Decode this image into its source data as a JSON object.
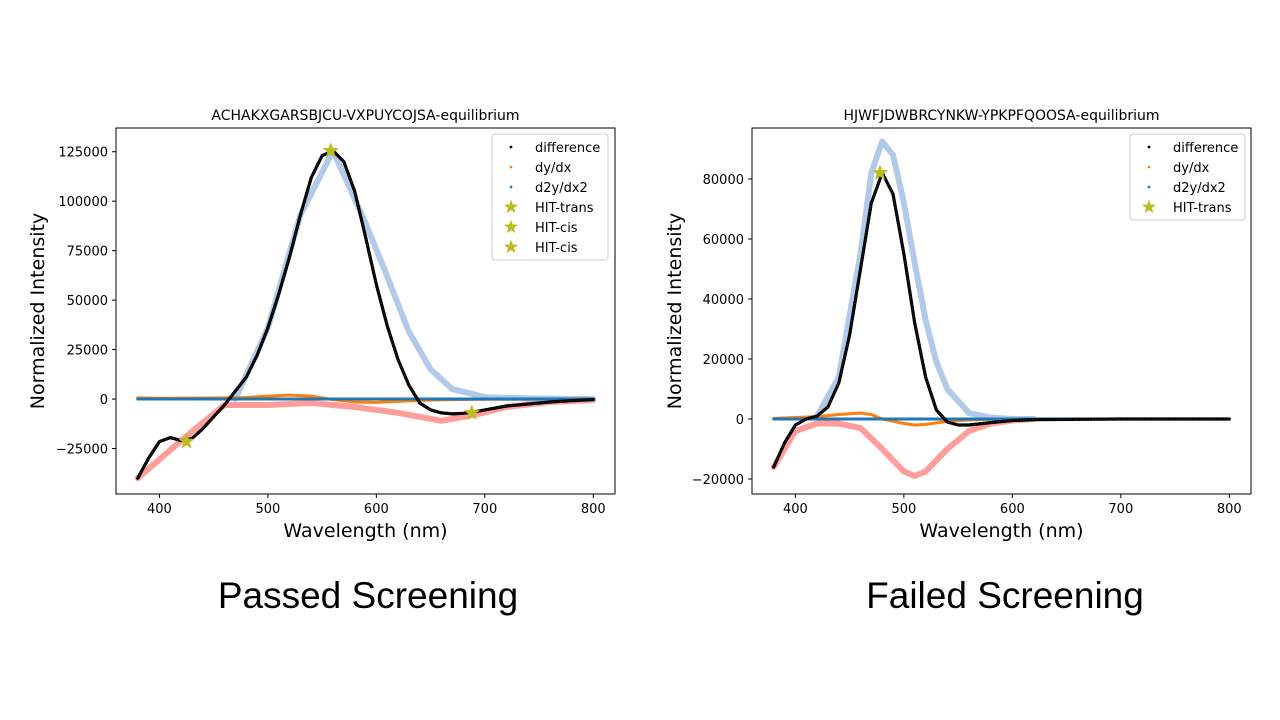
{
  "captions": {
    "left": "Passed Screening",
    "right": "Failed Screening"
  },
  "chart_data": [
    {
      "type": "scatter",
      "title": "ACHAKXGARSBJCU-VXPUYCOJSA-equilibrium",
      "xlabel": "Wavelength (nm)",
      "ylabel": "Normalized Intensity",
      "xlim": [
        360,
        820
      ],
      "ylim": [
        -48000,
        137000
      ],
      "xticks": [
        400,
        500,
        600,
        700,
        800
      ],
      "yticks": [
        -25000,
        0,
        25000,
        50000,
        75000,
        100000,
        125000
      ],
      "grid": false,
      "legend_position": "top-right",
      "legend": [
        {
          "label": "difference",
          "marker": "dot",
          "color": "#000000"
        },
        {
          "label": "dy/dx",
          "marker": "dot",
          "color": "#ff7f0e"
        },
        {
          "label": "d2y/dx2",
          "marker": "dot",
          "color": "#1f77b4"
        },
        {
          "label": "HIT-trans",
          "marker": "star",
          "color": "#bcbd22"
        },
        {
          "label": "HIT-cis",
          "marker": "star",
          "color": "#bcbd22"
        },
        {
          "label": "HIT-cis",
          "marker": "star",
          "color": "#bcbd22"
        }
      ],
      "series": [
        {
          "name": "difference",
          "color": "#000000",
          "x": [
            380,
            390,
            400,
            410,
            420,
            430,
            440,
            450,
            460,
            470,
            480,
            490,
            500,
            510,
            520,
            530,
            540,
            550,
            560,
            570,
            580,
            590,
            600,
            610,
            620,
            630,
            640,
            650,
            660,
            670,
            680,
            690,
            700,
            720,
            740,
            760,
            780,
            800
          ],
          "y": [
            -40000,
            -30000,
            -21500,
            -19500,
            -21000,
            -20000,
            -15000,
            -9000,
            -3000,
            4000,
            11000,
            22000,
            36000,
            53000,
            72000,
            93000,
            112000,
            123000,
            125500,
            120000,
            105000,
            82000,
            58000,
            37000,
            20000,
            7000,
            -2000,
            -5500,
            -7000,
            -7500,
            -7200,
            -6500,
            -5500,
            -3500,
            -2500,
            -1500,
            -800,
            -300
          ]
        },
        {
          "name": "difference envelope (upper)",
          "color": "#aec7e8",
          "x": [
            470,
            500,
            530,
            560,
            590,
            610,
            630,
            650,
            670,
            700,
            740,
            780,
            800
          ],
          "y": [
            0,
            36000,
            93000,
            125500,
            89000,
            62000,
            34000,
            15000,
            5000,
            1000,
            300,
            0,
            0
          ]
        },
        {
          "name": "difference envelope (lower)",
          "color": "#ff9896",
          "x": [
            380,
            420,
            460,
            500,
            540,
            580,
            620,
            650,
            660,
            690,
            720,
            760,
            800
          ],
          "y": [
            -40000,
            -21000,
            -3000,
            -3000,
            -2000,
            -4000,
            -7000,
            -10000,
            -11000,
            -8000,
            -4000,
            -1500,
            -500
          ]
        },
        {
          "name": "dy/dx",
          "color": "#ff7f0e",
          "x": [
            380,
            400,
            450,
            480,
            500,
            520,
            540,
            560,
            580,
            600,
            620,
            640,
            660,
            700,
            800
          ],
          "y": [
            600,
            400,
            500,
            800,
            1500,
            2000,
            1500,
            -300,
            -1500,
            -1700,
            -1200,
            -700,
            -400,
            -100,
            0
          ]
        },
        {
          "name": "d2y/dx2",
          "color": "#1f77b4",
          "x": [
            380,
            800
          ],
          "y": [
            0,
            0
          ]
        },
        {
          "name": "HIT-trans",
          "color": "#bcbd22",
          "x": [
            558
          ],
          "y": [
            125500
          ]
        },
        {
          "name": "HIT-cis",
          "color": "#bcbd22",
          "x": [
            425
          ],
          "y": [
            -21500
          ]
        },
        {
          "name": "HIT-cis",
          "color": "#bcbd22",
          "x": [
            688
          ],
          "y": [
            -7000
          ]
        }
      ]
    },
    {
      "type": "scatter",
      "title": "HJWFJDWBRCYNKW-YPKPFQOOSA-equilibrium",
      "xlabel": "Wavelength (nm)",
      "ylabel": "Normalized Intensity",
      "xlim": [
        360,
        820
      ],
      "ylim": [
        -25000,
        97000
      ],
      "xticks": [
        400,
        500,
        600,
        700,
        800
      ],
      "yticks": [
        -20000,
        0,
        20000,
        40000,
        60000,
        80000
      ],
      "grid": false,
      "legend_position": "top-right",
      "legend": [
        {
          "label": "difference",
          "marker": "dot",
          "color": "#000000"
        },
        {
          "label": "dy/dx",
          "marker": "dot",
          "color": "#ff7f0e"
        },
        {
          "label": "d2y/dx2",
          "marker": "dot",
          "color": "#1f77b4"
        },
        {
          "label": "HIT-trans",
          "marker": "star",
          "color": "#bcbd22"
        }
      ],
      "series": [
        {
          "name": "difference",
          "color": "#000000",
          "x": [
            380,
            390,
            400,
            410,
            420,
            430,
            440,
            450,
            460,
            470,
            480,
            490,
            500,
            510,
            520,
            530,
            540,
            550,
            560,
            580,
            600,
            620,
            700,
            800
          ],
          "y": [
            -16000,
            -8000,
            -2000,
            0,
            1000,
            4000,
            12000,
            28000,
            50000,
            72000,
            82000,
            75000,
            55000,
            32000,
            14000,
            3000,
            -1000,
            -2000,
            -2000,
            -1200,
            -500,
            -200,
            0,
            0
          ]
        },
        {
          "name": "difference envelope (upper)",
          "color": "#aec7e8",
          "x": [
            420,
            440,
            460,
            470,
            480,
            490,
            500,
            510,
            520,
            530,
            540,
            560,
            580,
            600,
            620
          ],
          "y": [
            1000,
            14000,
            55000,
            82000,
            92500,
            88000,
            72000,
            52000,
            33000,
            19000,
            10000,
            2000,
            500,
            0,
            0
          ]
        },
        {
          "name": "difference envelope (lower)",
          "color": "#ff9896",
          "x": [
            380,
            400,
            420,
            440,
            460,
            480,
            500,
            510,
            520,
            540,
            560,
            580,
            600,
            620
          ],
          "y": [
            -16000,
            -4000,
            -1500,
            -1500,
            -3000,
            -10000,
            -17500,
            -19000,
            -17500,
            -10000,
            -4000,
            -1500,
            -500,
            0
          ]
        },
        {
          "name": "dy/dx",
          "color": "#ff7f0e",
          "x": [
            380,
            420,
            440,
            460,
            470,
            480,
            500,
            510,
            520,
            540,
            560,
            580,
            600,
            620,
            800
          ],
          "y": [
            200,
            800,
            1500,
            2000,
            1500,
            0,
            -1500,
            -2000,
            -1800,
            -800,
            -300,
            -100,
            0,
            0,
            0
          ]
        },
        {
          "name": "d2y/dx2",
          "color": "#1f77b4",
          "x": [
            380,
            800
          ],
          "y": [
            0,
            0
          ]
        },
        {
          "name": "HIT-trans",
          "color": "#bcbd22",
          "x": [
            478
          ],
          "y": [
            82000
          ]
        }
      ]
    }
  ]
}
